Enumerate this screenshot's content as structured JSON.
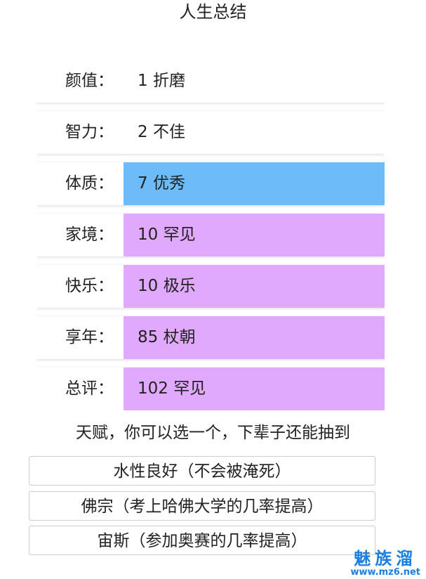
{
  "title": "人生总结",
  "stats": [
    {
      "label": "颜值：",
      "value": "1 折磨",
      "color": "#ffffff"
    },
    {
      "label": "智力：",
      "value": "2 不佳",
      "color": "#ffffff"
    },
    {
      "label": "体质：",
      "value": "7 优秀",
      "color": "#6dbcf9"
    },
    {
      "label": "家境：",
      "value": "10 罕见",
      "color": "#e0a9fd"
    },
    {
      "label": "快乐：",
      "value": "10 极乐",
      "color": "#e0a9fd"
    },
    {
      "label": "享年：",
      "value": "85 杖朝",
      "color": "#e0a9fd"
    },
    {
      "label": "总评：",
      "value": "102 罕见",
      "color": "#e0a9fd"
    }
  ],
  "talent_hint": "天赋，你可以选一个，下辈子还能抽到",
  "talents": [
    "水性良好（不会被淹死）",
    "佛宗（考上哈佛大学的几率提高）",
    "宙斯（参加奥赛的几率提高）"
  ],
  "watermark": {
    "name": "魅族溜",
    "url": "www.mz6.net"
  }
}
